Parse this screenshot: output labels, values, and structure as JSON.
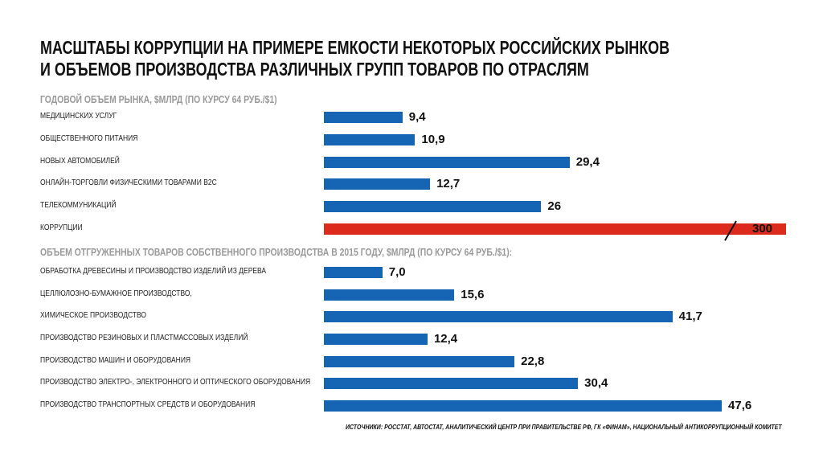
{
  "chart_data": {
    "type": "bar",
    "title": "МАСШТАБЫ КОРРУПЦИИ НА ПРИМЕРЕ ЕМКОСТИ НЕКОТОРЫХ РОССИЙСКИХ РЫНКОВ И ОБЪЕМОВ ПРОИЗВОДСТВА РАЗЛИЧНЫХ ГРУПП ТОВАРОВ ПО ОТРАСЛЯМ",
    "title_line1": "МАСШТАБЫ КОРРУПЦИИ НА ПРИМЕРЕ ЕМКОСТИ НЕКОТОРЫХ РОССИЙСКИХ РЫНКОВ",
    "title_line2": "И ОБЪЕМОВ ПРОИЗВОДСТВА РАЗЛИЧНЫХ ГРУПП ТОВАРОВ ПО ОТРАСЛЯМ",
    "groups": [
      {
        "title": "ГОДОВОЙ ОБЪЕМ РЫНКА, $МЛРД (ПО КУРСУ 64 РУБ./$1)",
        "categories": [
          "МЕДИЦИНСКИХ УСЛУГ",
          "ОБЩЕСТВЕННОГО ПИТАНИЯ",
          "НОВЫХ АВТОМОБИЛЕЙ",
          "ОНЛАЙН-ТОРГОВЛИ ФИЗИЧЕСКИМИ ТОВАРАМИ B2C",
          "ТЕЛЕКОММУНИКАЦИЙ",
          "КОРРУПЦИИ"
        ],
        "values": [
          9.4,
          10.9,
          29.4,
          12.7,
          26,
          300
        ],
        "labels": [
          "9,4",
          "10,9",
          "29,4",
          "12,7",
          "26",
          "300"
        ],
        "highlight": [
          false,
          false,
          false,
          false,
          false,
          true
        ]
      },
      {
        "title": "ОБЪЕМ ОТГРУЖЕННЫХ ТОВАРОВ СОБСТВЕННОГО ПРОИЗВОДСТВА В 2015 ГОДУ, $МЛРД (ПО КУРСУ 64 РУБ./$1):",
        "categories": [
          "ОБРАБОТКА ДРЕВЕСИНЫ И ПРОИЗВОДСТВО ИЗДЕЛИЙ ИЗ ДЕРЕВА",
          "ЦЕЛЛЮЛОЗНО-БУМАЖНОЕ ПРОИЗВОДСТВО,",
          "ХИМИЧЕСКОЕ ПРОИЗВОДСТВО",
          "ПРОИЗВОДСТВО РЕЗИНОВЫХ И ПЛАСТМАССОВЫХ ИЗДЕЛИЙ",
          "ПРОИЗВОДСТВО МАШИН И ОБОРУДОВАНИЯ",
          "ПРОИЗВОДСТВО ЭЛЕКТРО-, ЭЛЕКТРОННОГО И ОПТИЧЕСКОГО ОБОРУДОВАНИЯ",
          "ПРОИЗВОДСТВО ТРАНСПОРТНЫХ СРЕДСТВ И ОБОРУДОВАНИЯ"
        ],
        "values": [
          7.0,
          15.6,
          41.7,
          12.4,
          22.8,
          30.4,
          47.6
        ],
        "labels": [
          "7,0",
          "15,6",
          "41,7",
          "12,4",
          "22,8",
          "30,4",
          "47,6"
        ],
        "highlight": [
          false,
          false,
          false,
          false,
          false,
          false,
          false
        ]
      }
    ],
    "colors": {
      "bar": "#1565b4",
      "highlight": "#dc2a1d"
    },
    "axis_break": true,
    "source": "ИСТОЧНИКИ: РОССТАТ, АВТОСТАТ, АНАЛИТИЧЕСКИЙ ЦЕНТР ПРИ ПРАВИТЕЛЬСТВЕ РФ, ГК «ФИНАМ», НАЦИОНАЛЬНЫЙ АНТИКОРРУПЦИОННЫЙ КОМИТЕТ"
  }
}
